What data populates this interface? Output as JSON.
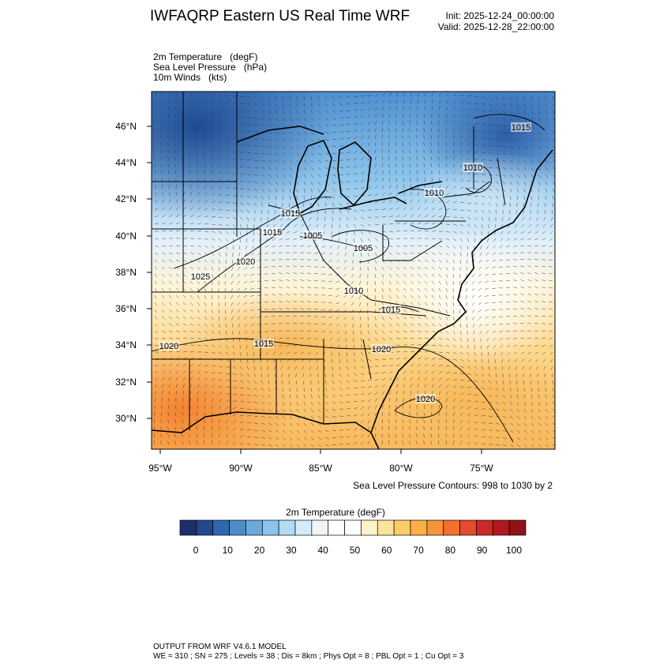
{
  "header": {
    "title": "IWFAQRP Eastern US Real Time WRF",
    "init": "Init: 2025-12-24_00:00:00",
    "valid": "Valid: 2025-12-28_22:00:00"
  },
  "fields": {
    "temp": "2m Temperature   (degF)",
    "slp": "Sea Level Pressure   (hPa)",
    "wind": "10m Winds   (kts)"
  },
  "map": {
    "lat_labels": [
      "46°N",
      "44°N",
      "42°N",
      "40°N",
      "38°N",
      "36°N",
      "34°N",
      "32°N",
      "30°N"
    ],
    "lon_labels": [
      "95°W",
      "90°W",
      "85°W",
      "80°W",
      "75°W"
    ],
    "contour_labels": [
      "1015",
      "1010",
      "1010",
      "1015",
      "1015",
      "1005",
      "1005",
      "1020",
      "1025",
      "1015",
      "1010",
      "1020",
      "1020",
      "1015",
      "1020"
    ],
    "land_color": "#e8b060"
  },
  "slp_note": "Sea Level Pressure Contours: 998 to 1030 by 2",
  "colorbar": {
    "title": "2m Temperature  (degF)",
    "colors": [
      "#1d2f6b",
      "#24478f",
      "#2f67b1",
      "#4b8cca",
      "#6aaadd",
      "#8cc5ec",
      "#b0dcf4",
      "#d4ecfa",
      "#eef6fc",
      "#ffffff",
      "#ffffff",
      "#fff3cc",
      "#fee49a",
      "#fdcc6a",
      "#fcb046",
      "#f89339",
      "#f2712d",
      "#e44a2b",
      "#cc2a27",
      "#b0191f",
      "#8e1418"
    ],
    "labels": [
      "0",
      "10",
      "20",
      "30",
      "40",
      "50",
      "60",
      "70",
      "80",
      "90",
      "100"
    ]
  },
  "footer": {
    "line1": "OUTPUT FROM WRF V4.6.1 MODEL",
    "line2": "WE = 310 ; SN = 275 ; Levels = 38 ; Dis = 8km ; Phys Opt = 8 ; PBL Opt = 1 ; Cu Opt = 3"
  }
}
